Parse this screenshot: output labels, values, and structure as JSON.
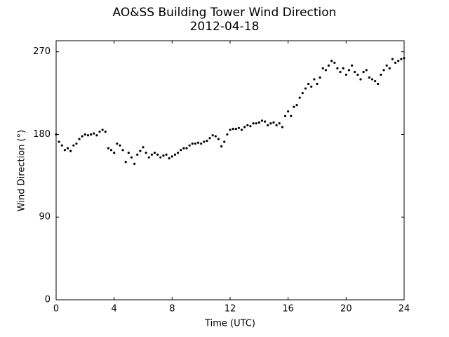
{
  "chart_data": {
    "type": "scatter",
    "title": "AO&SS Building Tower Wind Direction",
    "subtitle": "2012-04-18",
    "x_label": "Time (UTC)",
    "y_label": "Wind Direction (°)",
    "xlim": [
      0,
      24
    ],
    "ylim": [
      0,
      282
    ],
    "xticks": [
      0,
      4,
      8,
      12,
      16,
      20,
      24
    ],
    "yticks": [
      0,
      90,
      180,
      270
    ],
    "color": "#000000",
    "x": [
      0,
      0.2,
      0.4,
      0.6,
      0.8,
      1,
      1.2,
      1.4,
      1.6,
      1.8,
      2,
      2.2,
      2.4,
      2.6,
      2.8,
      3,
      3.2,
      3.4,
      3.6,
      3.8,
      4,
      4.2,
      4.4,
      4.6,
      4.8,
      5,
      5.2,
      5.4,
      5.6,
      5.8,
      6,
      6.2,
      6.4,
      6.6,
      6.8,
      7,
      7.2,
      7.4,
      7.6,
      7.8,
      8,
      8.2,
      8.4,
      8.6,
      8.8,
      9,
      9.2,
      9.4,
      9.6,
      9.8,
      10,
      10.2,
      10.4,
      10.6,
      10.8,
      11,
      11.2,
      11.4,
      11.6,
      11.8,
      12,
      12.2,
      12.4,
      12.6,
      12.8,
      13,
      13.2,
      13.4,
      13.6,
      13.8,
      14,
      14.2,
      14.4,
      14.6,
      14.8,
      15,
      15.2,
      15.4,
      15.6,
      15.8,
      16,
      16.2,
      16.4,
      16.6,
      16.8,
      17,
      17.2,
      17.4,
      17.6,
      17.8,
      18,
      18.2,
      18.4,
      18.6,
      18.8,
      19,
      19.2,
      19.4,
      19.6,
      19.8,
      20,
      20.2,
      20.4,
      20.6,
      20.8,
      21,
      21.2,
      21.4,
      21.6,
      21.8,
      22,
      22.2,
      22.4,
      22.6,
      22.8,
      23,
      23.2,
      23.4,
      23.6,
      23.8,
      24
    ],
    "values": [
      180,
      172,
      168,
      163,
      165,
      162,
      168,
      170,
      175,
      178,
      180,
      179,
      180,
      181,
      179,
      183,
      185,
      183,
      165,
      163,
      160,
      170,
      168,
      163,
      150,
      160,
      155,
      148,
      158,
      162,
      166,
      160,
      155,
      158,
      160,
      158,
      155,
      157,
      158,
      154,
      156,
      158,
      160,
      163,
      165,
      165,
      168,
      170,
      170,
      171,
      170,
      172,
      173,
      176,
      179,
      178,
      175,
      167,
      172,
      180,
      185,
      186,
      186,
      187,
      185,
      188,
      190,
      189,
      192,
      192,
      193,
      195,
      194,
      190,
      192,
      193,
      190,
      192,
      188,
      200,
      205,
      200,
      210,
      212,
      220,
      225,
      230,
      235,
      232,
      240,
      235,
      242,
      252,
      250,
      255,
      260,
      258,
      252,
      248,
      252,
      245,
      250,
      255,
      248,
      245,
      240,
      248,
      250,
      242,
      240,
      238,
      235,
      245,
      250,
      255,
      252,
      262,
      258,
      260,
      262,
      263
    ]
  }
}
